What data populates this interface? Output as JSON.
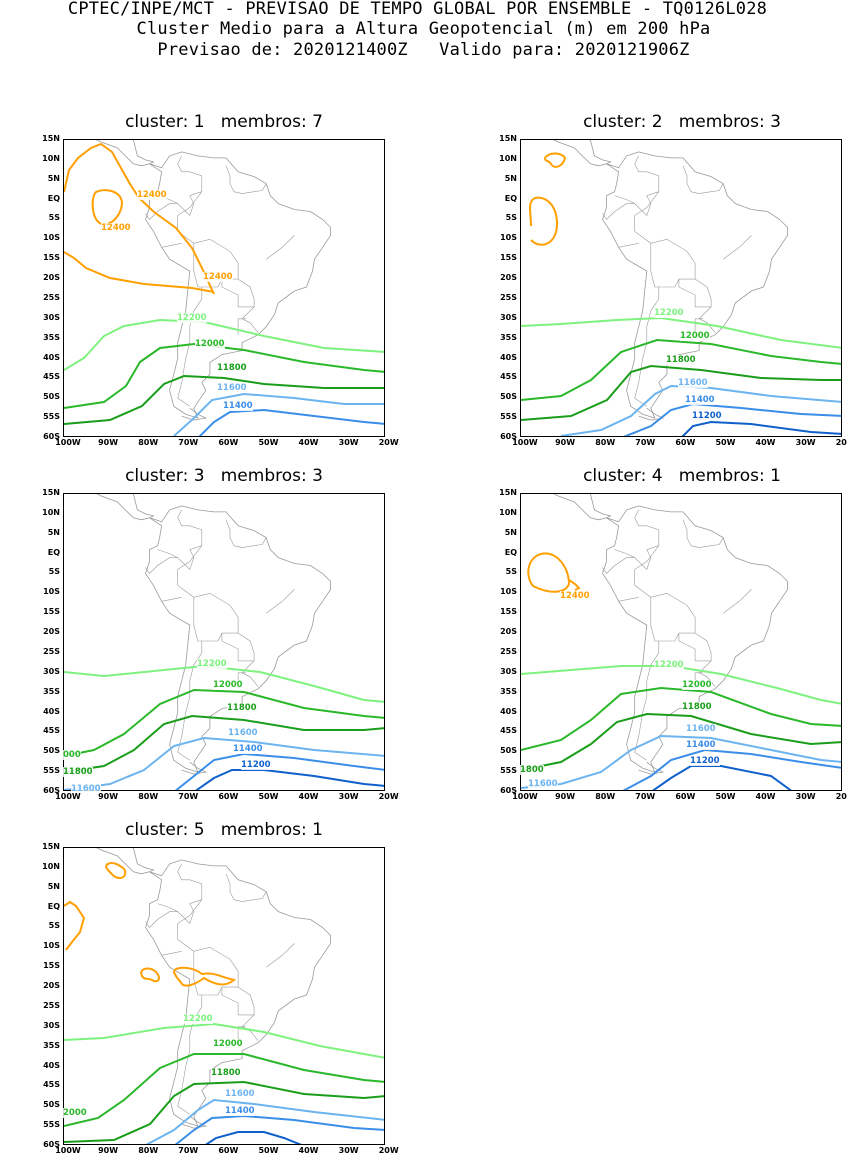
{
  "header": {
    "line1": "CPTEC/INPE/MCT - PREVISAO DE TEMPO GLOBAL POR ENSEMBLE - TQ0126L028",
    "line2": "Cluster Medio para a Altura Geopotencial (m) em 200 hPa",
    "line3": "Previsao de: 2020121400Z   Valido para: 2020121906Z"
  },
  "lat_labels": [
    "15N",
    "10N",
    "5N",
    "EQ",
    "5S",
    "10S",
    "15S",
    "20S",
    "25S",
    "30S",
    "35S",
    "40S",
    "45S",
    "50S",
    "55S",
    "60S"
  ],
  "lon_labels": [
    "100W",
    "90W",
    "80W",
    "70W",
    "60W",
    "50W",
    "40W",
    "30W",
    "20W"
  ],
  "colors": {
    "c12400": "#ff9f00",
    "c12200": "#7ef27e",
    "c12000": "#2ab82a",
    "c11800": "#1a9e1a",
    "c11600": "#6cb4f0",
    "c11400": "#3a8ee8",
    "c11200": "#1060cc",
    "land": "#9a9a9a"
  },
  "panels": [
    {
      "title": "cluster: 1   membros: 7",
      "labels": [
        "12400",
        "12400",
        "12400",
        "12200",
        "12000",
        "11800",
        "11600",
        "11400"
      ]
    },
    {
      "title": "cluster: 2   membros: 3",
      "labels": [
        "12200",
        "12000",
        "11800",
        "11600",
        "11400",
        "11200"
      ]
    },
    {
      "title": "cluster: 3   membros: 3",
      "labels": [
        "12200",
        "12000",
        "11800",
        "11600",
        "11400",
        "11200",
        "000",
        "11800",
        "11600"
      ]
    },
    {
      "title": "cluster: 4   membros: 1",
      "labels": [
        "12400",
        "12200",
        "12000",
        "11800",
        "11600",
        "11400",
        "11200",
        "1800",
        "11600"
      ]
    },
    {
      "title": "cluster: 5   membros: 1",
      "labels": [
        "12200",
        "12000",
        "11800",
        "11600",
        "11400",
        "2000"
      ]
    }
  ]
}
